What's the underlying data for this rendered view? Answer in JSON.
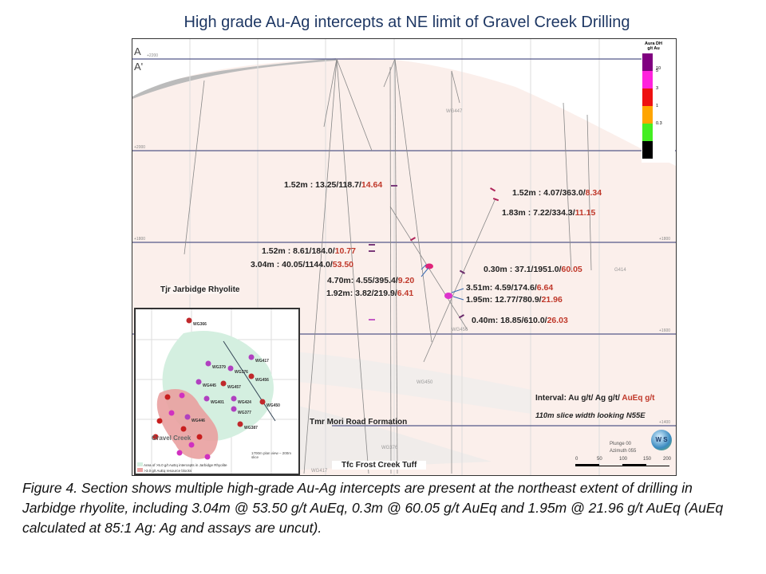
{
  "title": "High grade Au-Ag intercepts at NE limit of Gravel Creek Drilling",
  "section": {
    "label_a": "A",
    "label_a_prime": "A'",
    "elevations": [
      "+2200",
      "+2000",
      "+1800",
      "+1600",
      "+1400"
    ],
    "legend": {
      "title": "Aura DH g/t Au",
      "bins": [
        {
          "label": "10",
          "color": "#800080"
        },
        {
          "label": "5",
          "color": "#ff22dd"
        },
        {
          "label": "3",
          "color": "#ee1111"
        },
        {
          "label": "1",
          "color": "#ffa500"
        },
        {
          "label": "0.3",
          "color": "#44ee22"
        },
        {
          "label": "",
          "color": "#000000"
        }
      ]
    },
    "intercepts": [
      {
        "text": "1.52m : 13.25/118.7/",
        "aueq": "14.64"
      },
      {
        "text": "1.52m : 4.07/363.0/",
        "aueq": "8.34"
      },
      {
        "text": "1.83m : 7.22/334.3/",
        "aueq": "11.15"
      },
      {
        "text": "1.52m : 8.61/184.0/",
        "aueq": "10.77"
      },
      {
        "text": "3.04m : 40.05/1144.0/",
        "aueq": "53.50"
      },
      {
        "text": "0.30m : 37.1/1951.0/",
        "aueq": "60.05"
      },
      {
        "text": "4.70m: 4.55/395.4/",
        "aueq": "9.20"
      },
      {
        "text": "1.92m: 3.82/219.9/",
        "aueq": "6.41"
      },
      {
        "text": "3.51m: 4.59/174.6/",
        "aueq": "6.64"
      },
      {
        "text": "1.95m: 12.77/780.9/",
        "aueq": "21.96"
      },
      {
        "text": "0.40m: 18.85/610.0/",
        "aueq": "26.03"
      }
    ],
    "holes": [
      "WG447",
      "G414",
      "WG456",
      "WG450",
      "WG376",
      "WG417"
    ],
    "units": [
      "Tjr Jarbidge Rhyolite",
      "Tmr Mori Road Formation",
      "Tfc Frost Creek Tuff"
    ],
    "interval_key": {
      "text": "Interval: Au g/t/ Ag g/t/ ",
      "aueq": "AuEq g/t"
    },
    "slice": "110m slice width looking N55E",
    "plunge": "Plunge 00",
    "azimuth": "Azimuth 055",
    "scale": [
      "0",
      "50",
      "100",
      "150",
      "200"
    ],
    "compass": "W S"
  },
  "inset": {
    "place": "Gravel Creek",
    "holes": [
      "WG366",
      "WG417",
      "WG376",
      "WG456",
      "WG379",
      "WG445",
      "WG457",
      "WG401",
      "WG424",
      "WG450",
      "WG377",
      "WG446",
      "WG387"
    ],
    "view": "1700m plan view – 200m slice",
    "legend": [
      "Area of >5.0 g/t AuEq intercepts in Jarbidge Rhyolite",
      ">3.0 g/t AuEq resource blocks"
    ]
  },
  "caption": "Figure 4. Section shows multiple high-grade Au-Ag intercepts are present at the northeast extent of drilling in Jarbidge rhyolite, including 3.04m @ 53.50 g/t AuEq, 0.3m @ 60.05 g/t AuEq and 1.95m @ 21.96 g/t AuEq (AuEq calculated at 85:1 Ag: Ag and assays are uncut)."
}
